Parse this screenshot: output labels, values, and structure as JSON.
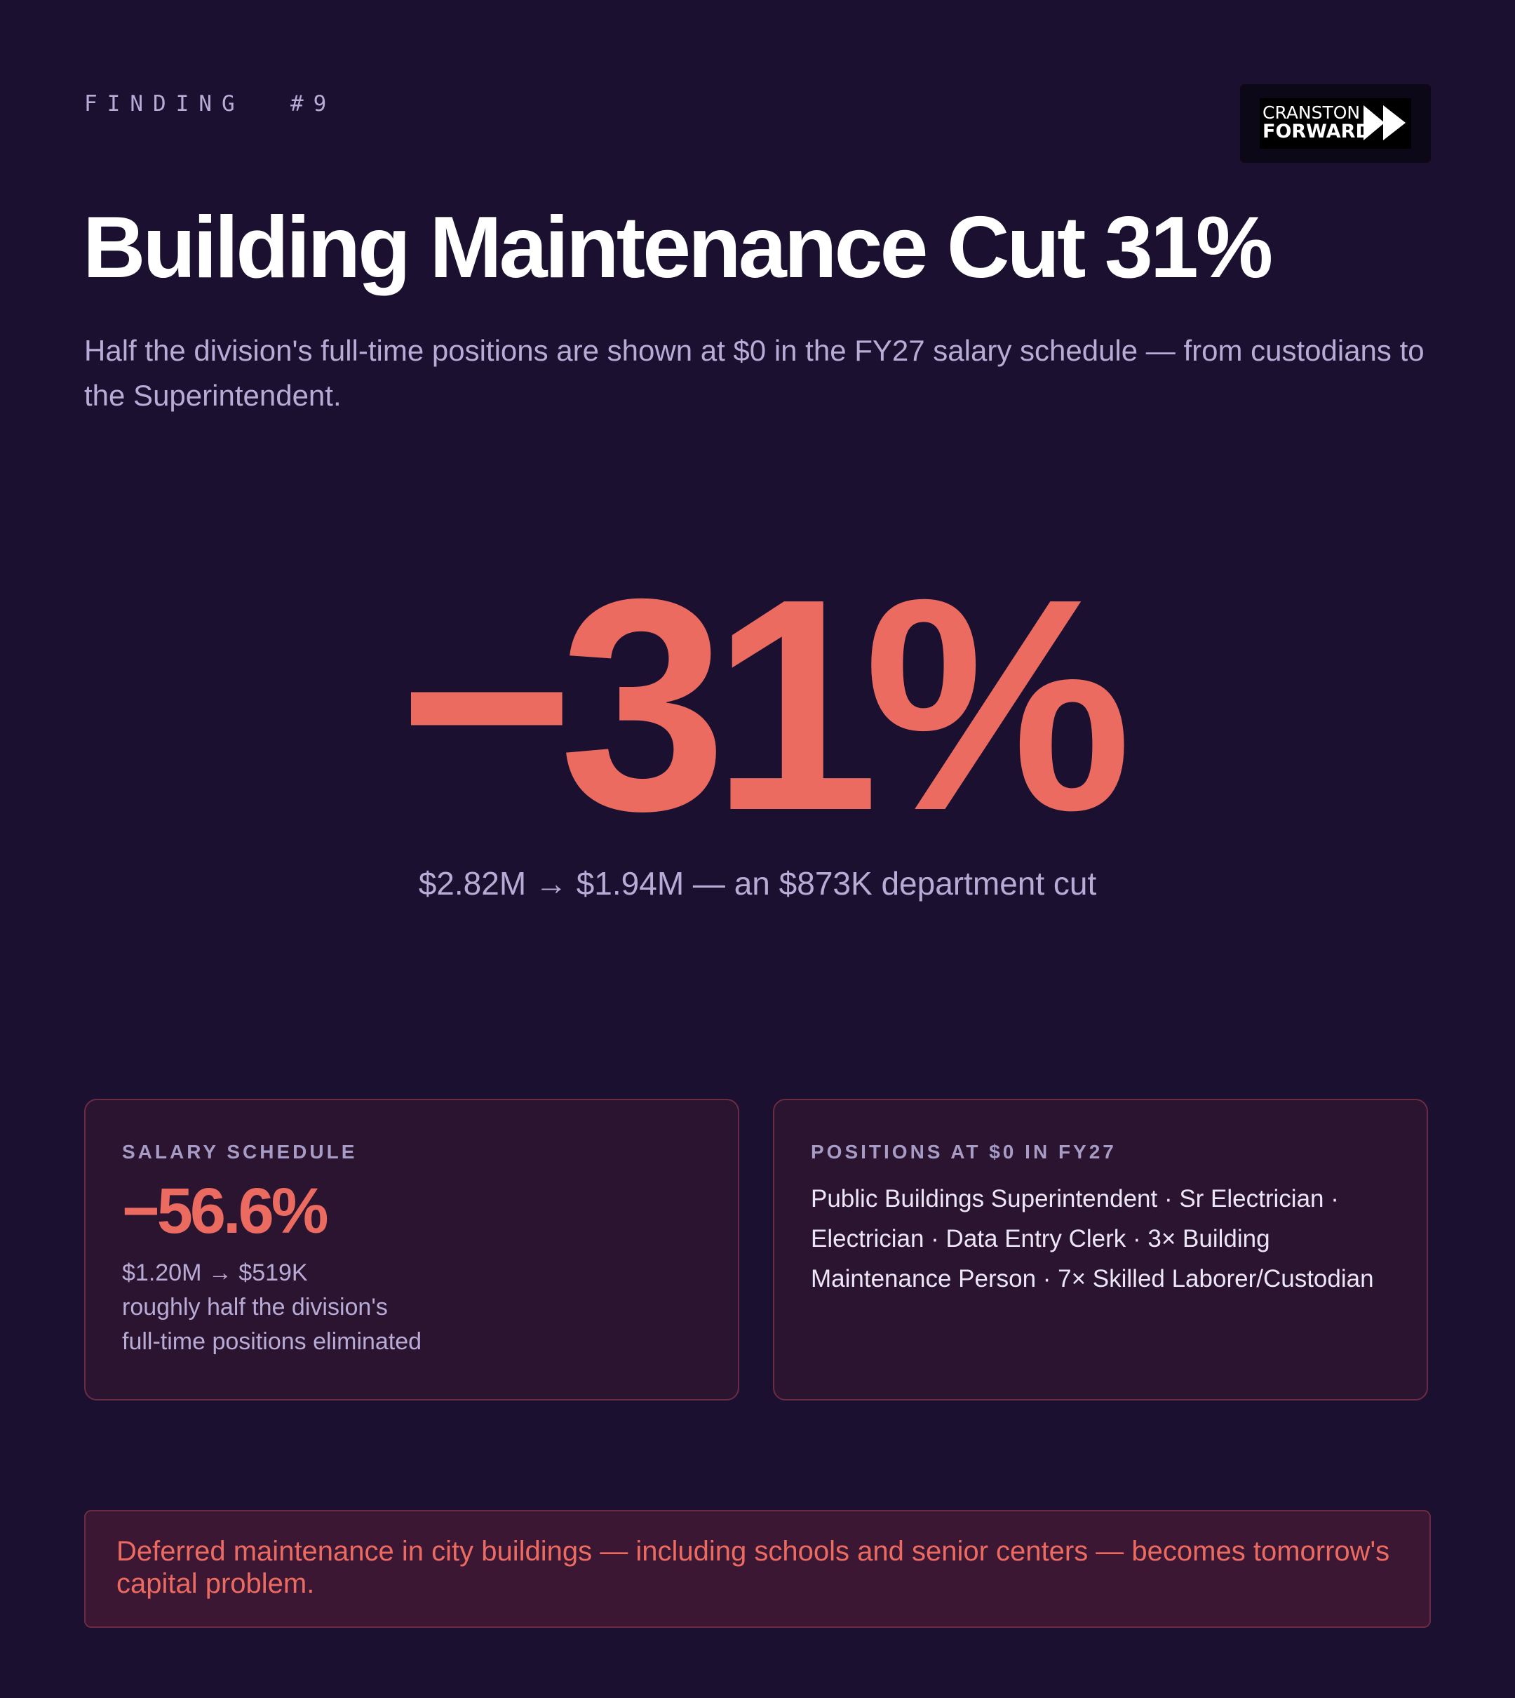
{
  "header": {
    "eyebrow": "FINDING  #9",
    "logo": {
      "line1": "CRANSTON",
      "line2": "FORWARD",
      "icon": "fast-forward-icon"
    }
  },
  "title": "Building Maintenance Cut 31%",
  "subtitle": "Half the division's full-time positions are shown at $0 in the FY27 salary schedule — from custodians to the Superintendent.",
  "hero": {
    "value": "−31%",
    "caption": "$2.82M → $1.94M — an $873K department cut"
  },
  "cards": {
    "salary": {
      "label": "SALARY SCHEDULE",
      "value": "−56.6%",
      "change": "$1.20M → $519K",
      "note_line1": "roughly half the division's",
      "note_line2": "full-time positions eliminated"
    },
    "positions": {
      "label": "POSITIONS AT $0 IN FY27",
      "text": "Public Buildings Superintendent · Sr Electrician · Electrician · Data Entry Clerk · 3× Building Maintenance Person · 7× Skilled Laborer/Custodian"
    }
  },
  "callout": {
    "text": "Deferred maintenance in city buildings — including schools and senior centers — becomes tomorrow's capital problem."
  },
  "colors": {
    "background": "#1b1030",
    "accent": "#ec6b60",
    "muted_text": "#b8acd6",
    "card_background": "#2b1430",
    "card_border": "#6a2c45"
  }
}
